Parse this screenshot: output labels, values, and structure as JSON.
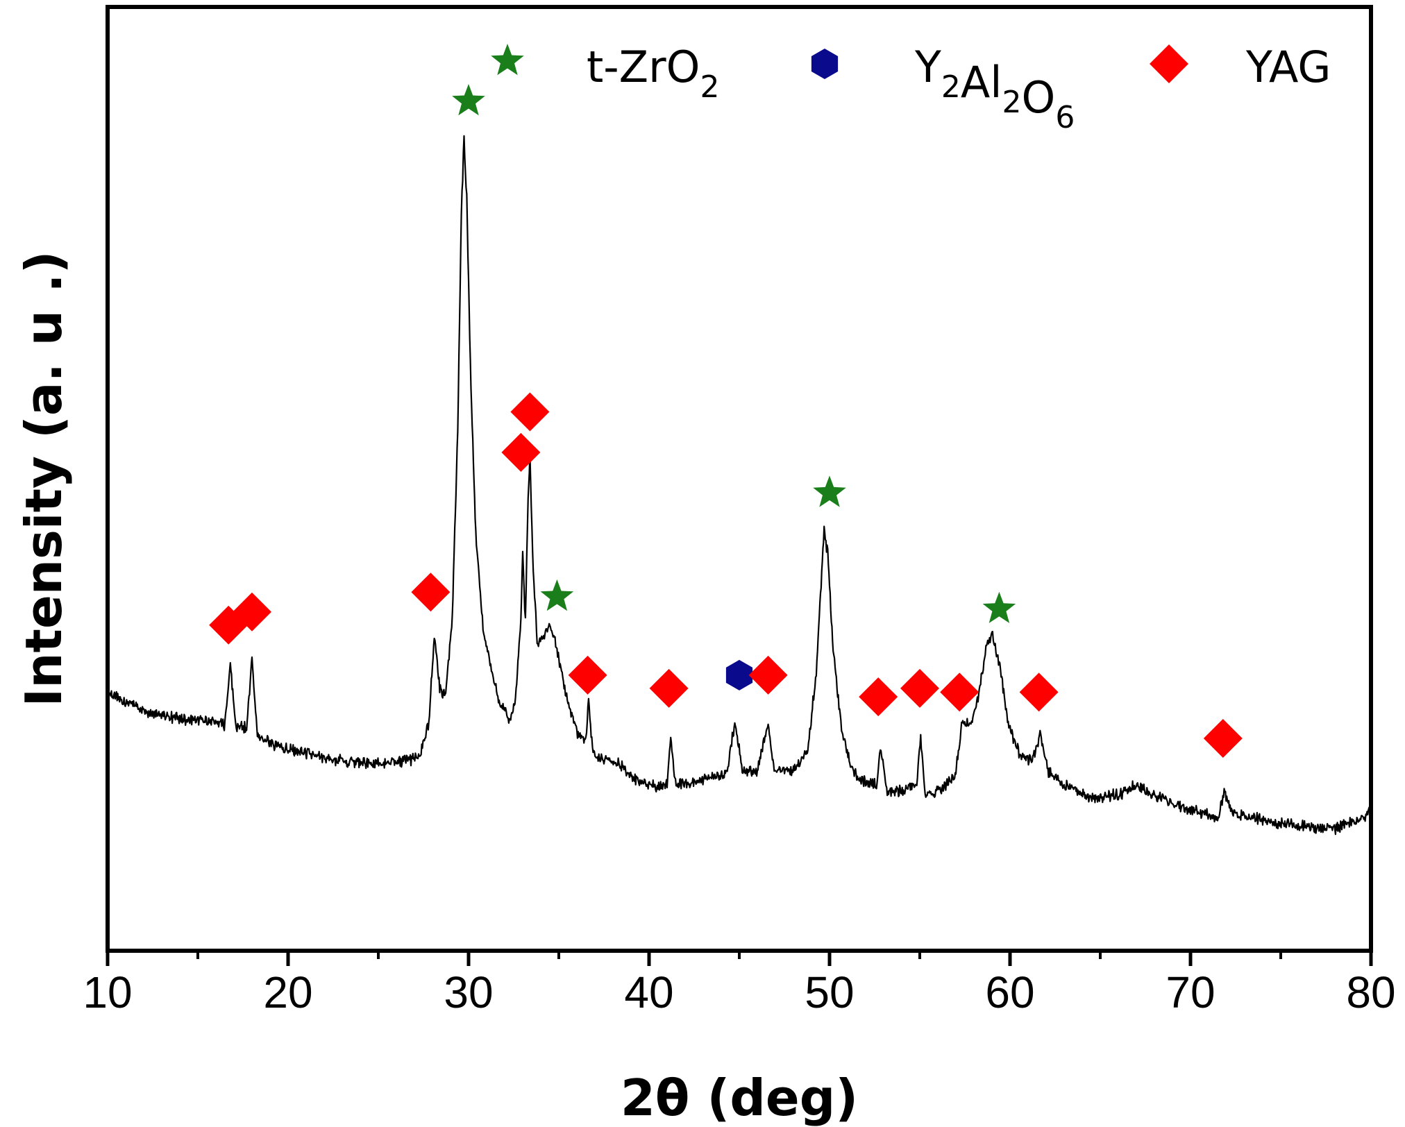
{
  "chart_data": {
    "type": "line",
    "title": "",
    "xlabel": "2θ (deg)",
    "ylabel": "Intensity (a. u .)",
    "xlim": [
      10,
      80
    ],
    "ylim": [
      0,
      100
    ],
    "x_ticks": [
      10,
      20,
      30,
      40,
      50,
      60,
      70,
      80
    ],
    "x_tick_labels": [
      "10",
      "20",
      "30",
      "40",
      "50",
      "60",
      "70",
      "80"
    ],
    "y_ticks_shown": false,
    "grid": false,
    "legend_position": "top-right",
    "colors": {
      "trace": "#000000",
      "t_ZrO2": "#1a7f1a",
      "Y2Al2O6": "#0a0a8c",
      "YAG": "#ff0000"
    },
    "legend": [
      {
        "key": "t_ZrO2",
        "marker": "star",
        "base": "t-ZrO",
        "sub": "2"
      },
      {
        "key": "Y2Al2O6",
        "marker": "hexagon",
        "parts": [
          [
            "Y",
            "2"
          ],
          [
            "Al",
            "2"
          ],
          [
            "O",
            "6"
          ]
        ]
      },
      {
        "key": "YAG",
        "marker": "diamond",
        "base": "YAG",
        "sub": ""
      }
    ],
    "series": [
      {
        "points": [
          [
            10.0,
            27.3
          ],
          [
            12.0,
            25.5
          ],
          [
            14.0,
            24.6
          ],
          [
            15.5,
            24.3
          ],
          [
            16.5,
            24.0
          ],
          [
            16.8,
            30.5
          ],
          [
            17.1,
            23.8
          ],
          [
            17.7,
            23.6
          ],
          [
            18.0,
            31.0
          ],
          [
            18.3,
            22.6
          ],
          [
            20.0,
            21.3
          ],
          [
            22.0,
            20.4
          ],
          [
            24.0,
            19.9
          ],
          [
            26.0,
            19.9
          ],
          [
            27.3,
            20.6
          ],
          [
            27.8,
            24.0
          ],
          [
            28.1,
            33.5
          ],
          [
            28.4,
            28.0
          ],
          [
            28.7,
            26.8
          ],
          [
            29.1,
            35.5
          ],
          [
            29.4,
            55.0
          ],
          [
            29.6,
            78.0
          ],
          [
            29.75,
            86.0
          ],
          [
            29.9,
            80.0
          ],
          [
            30.1,
            62.0
          ],
          [
            30.4,
            44.0
          ],
          [
            30.8,
            34.0
          ],
          [
            31.3,
            29.5
          ],
          [
            31.8,
            26.0
          ],
          [
            32.3,
            24.5
          ],
          [
            32.6,
            26.5
          ],
          [
            32.9,
            35.0
          ],
          [
            33.0,
            41.8
          ],
          [
            33.15,
            35.0
          ],
          [
            33.3,
            48.0
          ],
          [
            33.4,
            52.5
          ],
          [
            33.55,
            42.0
          ],
          [
            33.8,
            32.5
          ],
          [
            34.2,
            33.5
          ],
          [
            34.5,
            34.5
          ],
          [
            34.9,
            32.0
          ],
          [
            35.4,
            27.0
          ],
          [
            36.0,
            23.0
          ],
          [
            36.5,
            22.5
          ],
          [
            36.65,
            26.5
          ],
          [
            36.9,
            20.8
          ],
          [
            37.5,
            20.5
          ],
          [
            38.5,
            19.5
          ],
          [
            39.5,
            17.8
          ],
          [
            40.5,
            17.4
          ],
          [
            41.0,
            17.8
          ],
          [
            41.2,
            22.5
          ],
          [
            41.5,
            17.5
          ],
          [
            42.5,
            17.8
          ],
          [
            43.5,
            18.4
          ],
          [
            44.3,
            18.8
          ],
          [
            44.75,
            24.2
          ],
          [
            45.2,
            19.0
          ],
          [
            46.0,
            19.0
          ],
          [
            46.6,
            24.0
          ],
          [
            46.9,
            19.2
          ],
          [
            48.0,
            19.0
          ],
          [
            48.8,
            21.0
          ],
          [
            49.3,
            30.5
          ],
          [
            49.5,
            38.0
          ],
          [
            49.7,
            44.5
          ],
          [
            49.9,
            42.0
          ],
          [
            50.2,
            32.0
          ],
          [
            50.7,
            23.0
          ],
          [
            51.3,
            19.0
          ],
          [
            52.0,
            17.8
          ],
          [
            52.6,
            17.5
          ],
          [
            52.85,
            21.5
          ],
          [
            53.2,
            16.8
          ],
          [
            54.2,
            17.0
          ],
          [
            54.8,
            17.5
          ],
          [
            55.05,
            22.5
          ],
          [
            55.3,
            16.5
          ],
          [
            56.3,
            17.3
          ],
          [
            57.0,
            18.8
          ],
          [
            57.35,
            24.3
          ],
          [
            57.8,
            23.8
          ],
          [
            58.3,
            27.5
          ],
          [
            58.7,
            32.5
          ],
          [
            59.0,
            33.5
          ],
          [
            59.4,
            30.5
          ],
          [
            59.9,
            24.0
          ],
          [
            60.6,
            20.5
          ],
          [
            61.3,
            20.3
          ],
          [
            61.7,
            23.0
          ],
          [
            62.1,
            19.0
          ],
          [
            63.0,
            17.6
          ],
          [
            64.5,
            16.2
          ],
          [
            66.0,
            16.5
          ],
          [
            67.0,
            17.5
          ],
          [
            68.0,
            16.5
          ],
          [
            69.0,
            15.6
          ],
          [
            70.0,
            14.8
          ],
          [
            71.5,
            14.1
          ],
          [
            71.9,
            16.8
          ],
          [
            72.3,
            14.6
          ],
          [
            74.0,
            13.8
          ],
          [
            76.0,
            13.2
          ],
          [
            78.0,
            13.0
          ],
          [
            79.5,
            14.0
          ],
          [
            80.0,
            15.0
          ]
        ]
      }
    ],
    "peak_markers": [
      {
        "phase": "t_ZrO2",
        "marker": "star",
        "x": 30.0,
        "y": 90.0
      },
      {
        "phase": "t_ZrO2",
        "marker": "star",
        "x": 34.9,
        "y": 37.5
      },
      {
        "phase": "t_ZrO2",
        "marker": "star",
        "x": 50.0,
        "y": 48.5
      },
      {
        "phase": "t_ZrO2",
        "marker": "star",
        "x": 59.4,
        "y": 36.2
      },
      {
        "phase": "Y2Al2O6",
        "marker": "hexagon",
        "x": 45.0,
        "y": 29.2
      },
      {
        "phase": "YAG",
        "marker": "diamond",
        "x": 16.7,
        "y": 34.5
      },
      {
        "phase": "YAG",
        "marker": "diamond",
        "x": 18.0,
        "y": 35.9
      },
      {
        "phase": "YAG",
        "marker": "diamond",
        "x": 27.9,
        "y": 38.0
      },
      {
        "phase": "YAG",
        "marker": "diamond",
        "x": 32.9,
        "y": 52.8
      },
      {
        "phase": "YAG",
        "marker": "diamond",
        "x": 33.4,
        "y": 57.1
      },
      {
        "phase": "YAG",
        "marker": "diamond",
        "x": 36.6,
        "y": 29.2
      },
      {
        "phase": "YAG",
        "marker": "diamond",
        "x": 41.1,
        "y": 27.8
      },
      {
        "phase": "YAG",
        "marker": "diamond",
        "x": 46.6,
        "y": 29.2
      },
      {
        "phase": "YAG",
        "marker": "diamond",
        "x": 52.7,
        "y": 26.9
      },
      {
        "phase": "YAG",
        "marker": "diamond",
        "x": 55.0,
        "y": 27.8
      },
      {
        "phase": "YAG",
        "marker": "diamond",
        "x": 57.2,
        "y": 27.4
      },
      {
        "phase": "YAG",
        "marker": "diamond",
        "x": 61.6,
        "y": 27.4
      },
      {
        "phase": "YAG",
        "marker": "diamond",
        "x": 71.8,
        "y": 22.5
      }
    ]
  }
}
